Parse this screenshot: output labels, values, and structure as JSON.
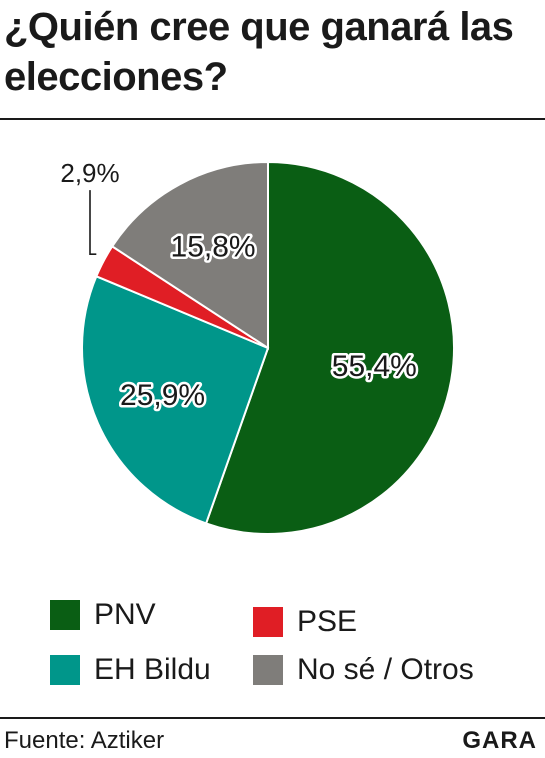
{
  "title": "¿Quién cree que ganará las elecciones?",
  "chart_data": {
    "type": "pie",
    "categories": [
      "PNV",
      "EH Bildu",
      "PSE",
      "No sé / Otros"
    ],
    "values": [
      55.4,
      25.9,
      2.9,
      15.8
    ],
    "value_labels": [
      "55,4%",
      "25,9%",
      "2,9%",
      "15,8%"
    ],
    "colors": [
      "#0a5e14",
      "#00968a",
      "#e01e25",
      "#7f7d7a"
    ],
    "start": "top",
    "direction": "clockwise",
    "legend_position": "bottom"
  },
  "legend": {
    "items": [
      {
        "label": "PNV",
        "color": "#0a5e14"
      },
      {
        "label": "EH Bildu",
        "color": "#00968a"
      },
      {
        "label": "PSE",
        "color": "#e01e25"
      },
      {
        "label": "No sé / Otros",
        "color": "#7f7d7a"
      }
    ]
  },
  "footer": {
    "source": "Fuente: Aztiker",
    "brand": "GARA"
  }
}
